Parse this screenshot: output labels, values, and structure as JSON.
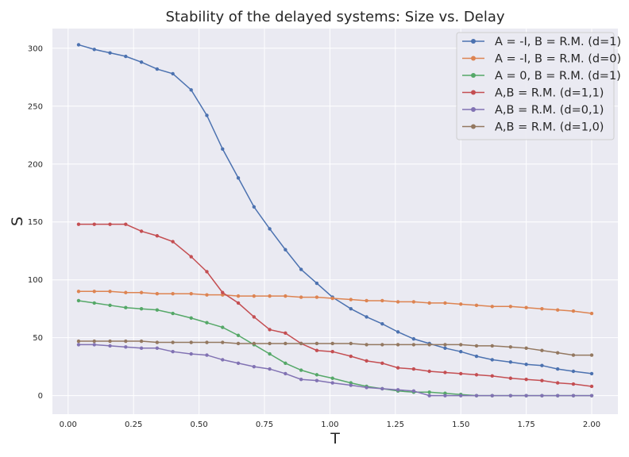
{
  "chart_data": {
    "type": "line",
    "title": "Stability of the delayed systems:  Size vs. Delay",
    "xlabel": "T",
    "ylabel": "S",
    "xlim": [
      -0.06,
      2.1
    ],
    "ylim": [
      -16,
      317
    ],
    "xticks": [
      0.0,
      0.25,
      0.5,
      0.75,
      1.0,
      1.25,
      1.5,
      1.75,
      2.0
    ],
    "xtick_labels": [
      "0.00",
      "0.25",
      "0.50",
      "0.75",
      "1.00",
      "1.25",
      "1.50",
      "1.75",
      "2.00"
    ],
    "yticks": [
      0,
      50,
      100,
      150,
      200,
      250,
      300
    ],
    "ytick_labels": [
      "0",
      "50",
      "100",
      "150",
      "200",
      "250",
      "300"
    ],
    "grid": true,
    "legend_position": "top-right",
    "x": [
      0.04,
      0.1,
      0.16,
      0.22,
      0.28,
      0.34,
      0.4,
      0.47,
      0.53,
      0.59,
      0.65,
      0.71,
      0.77,
      0.83,
      0.89,
      0.95,
      1.01,
      1.08,
      1.14,
      1.2,
      1.26,
      1.32,
      1.38,
      1.44,
      1.5,
      1.56,
      1.62,
      1.69,
      1.75,
      1.81,
      1.87,
      1.93,
      2.0
    ],
    "series": [
      {
        "name": "A = -I, B = R.M. (d=1)",
        "color": "#4c72b0",
        "values": [
          303,
          299,
          296,
          293,
          288,
          282,
          278,
          264,
          242,
          213,
          188,
          163,
          144,
          126,
          109,
          97,
          85,
          75,
          68,
          62,
          55,
          49,
          45,
          41,
          38,
          34,
          31,
          29,
          27,
          26,
          23,
          21,
          19
        ]
      },
      {
        "name": "A = -I, B = R.M. (d=0)",
        "color": "#dd8452",
        "values": [
          90,
          90,
          90,
          89,
          89,
          88,
          88,
          88,
          87,
          87,
          86,
          86,
          86,
          86,
          85,
          85,
          84,
          83,
          82,
          82,
          81,
          81,
          80,
          80,
          79,
          78,
          77,
          77,
          76,
          75,
          74,
          73,
          71
        ]
      },
      {
        "name": "A = 0, B = R.M. (d=1)",
        "color": "#55a868",
        "values": [
          82,
          80,
          78,
          76,
          75,
          74,
          71,
          67,
          63,
          59,
          52,
          44,
          36,
          28,
          22,
          18,
          15,
          11,
          8,
          6,
          4,
          3,
          3,
          2,
          1,
          0,
          0,
          0,
          0,
          0,
          0,
          0,
          0
        ]
      },
      {
        "name": "A,B = R.M. (d=1,1)",
        "color": "#c44e52",
        "values": [
          148,
          148,
          148,
          148,
          142,
          138,
          133,
          120,
          107,
          89,
          80,
          68,
          57,
          54,
          45,
          39,
          38,
          34,
          30,
          28,
          24,
          23,
          21,
          20,
          19,
          18,
          17,
          15,
          14,
          13,
          11,
          10,
          8
        ]
      },
      {
        "name": "A,B = R.M. (d=0,1)",
        "color": "#8172b3",
        "values": [
          44,
          44,
          43,
          42,
          41,
          41,
          38,
          36,
          35,
          31,
          28,
          25,
          23,
          19,
          14,
          13,
          11,
          9,
          7,
          6,
          5,
          4,
          0,
          0,
          0,
          0,
          0,
          0,
          0,
          0,
          0,
          0,
          0
        ]
      },
      {
        "name": "A,B = R.M. (d=1,0)",
        "color": "#937860",
        "values": [
          47,
          47,
          47,
          47,
          47,
          46,
          46,
          46,
          46,
          46,
          45,
          45,
          45,
          45,
          45,
          45,
          45,
          45,
          44,
          44,
          44,
          44,
          44,
          44,
          44,
          43,
          43,
          42,
          41,
          39,
          37,
          35,
          35
        ]
      }
    ]
  }
}
